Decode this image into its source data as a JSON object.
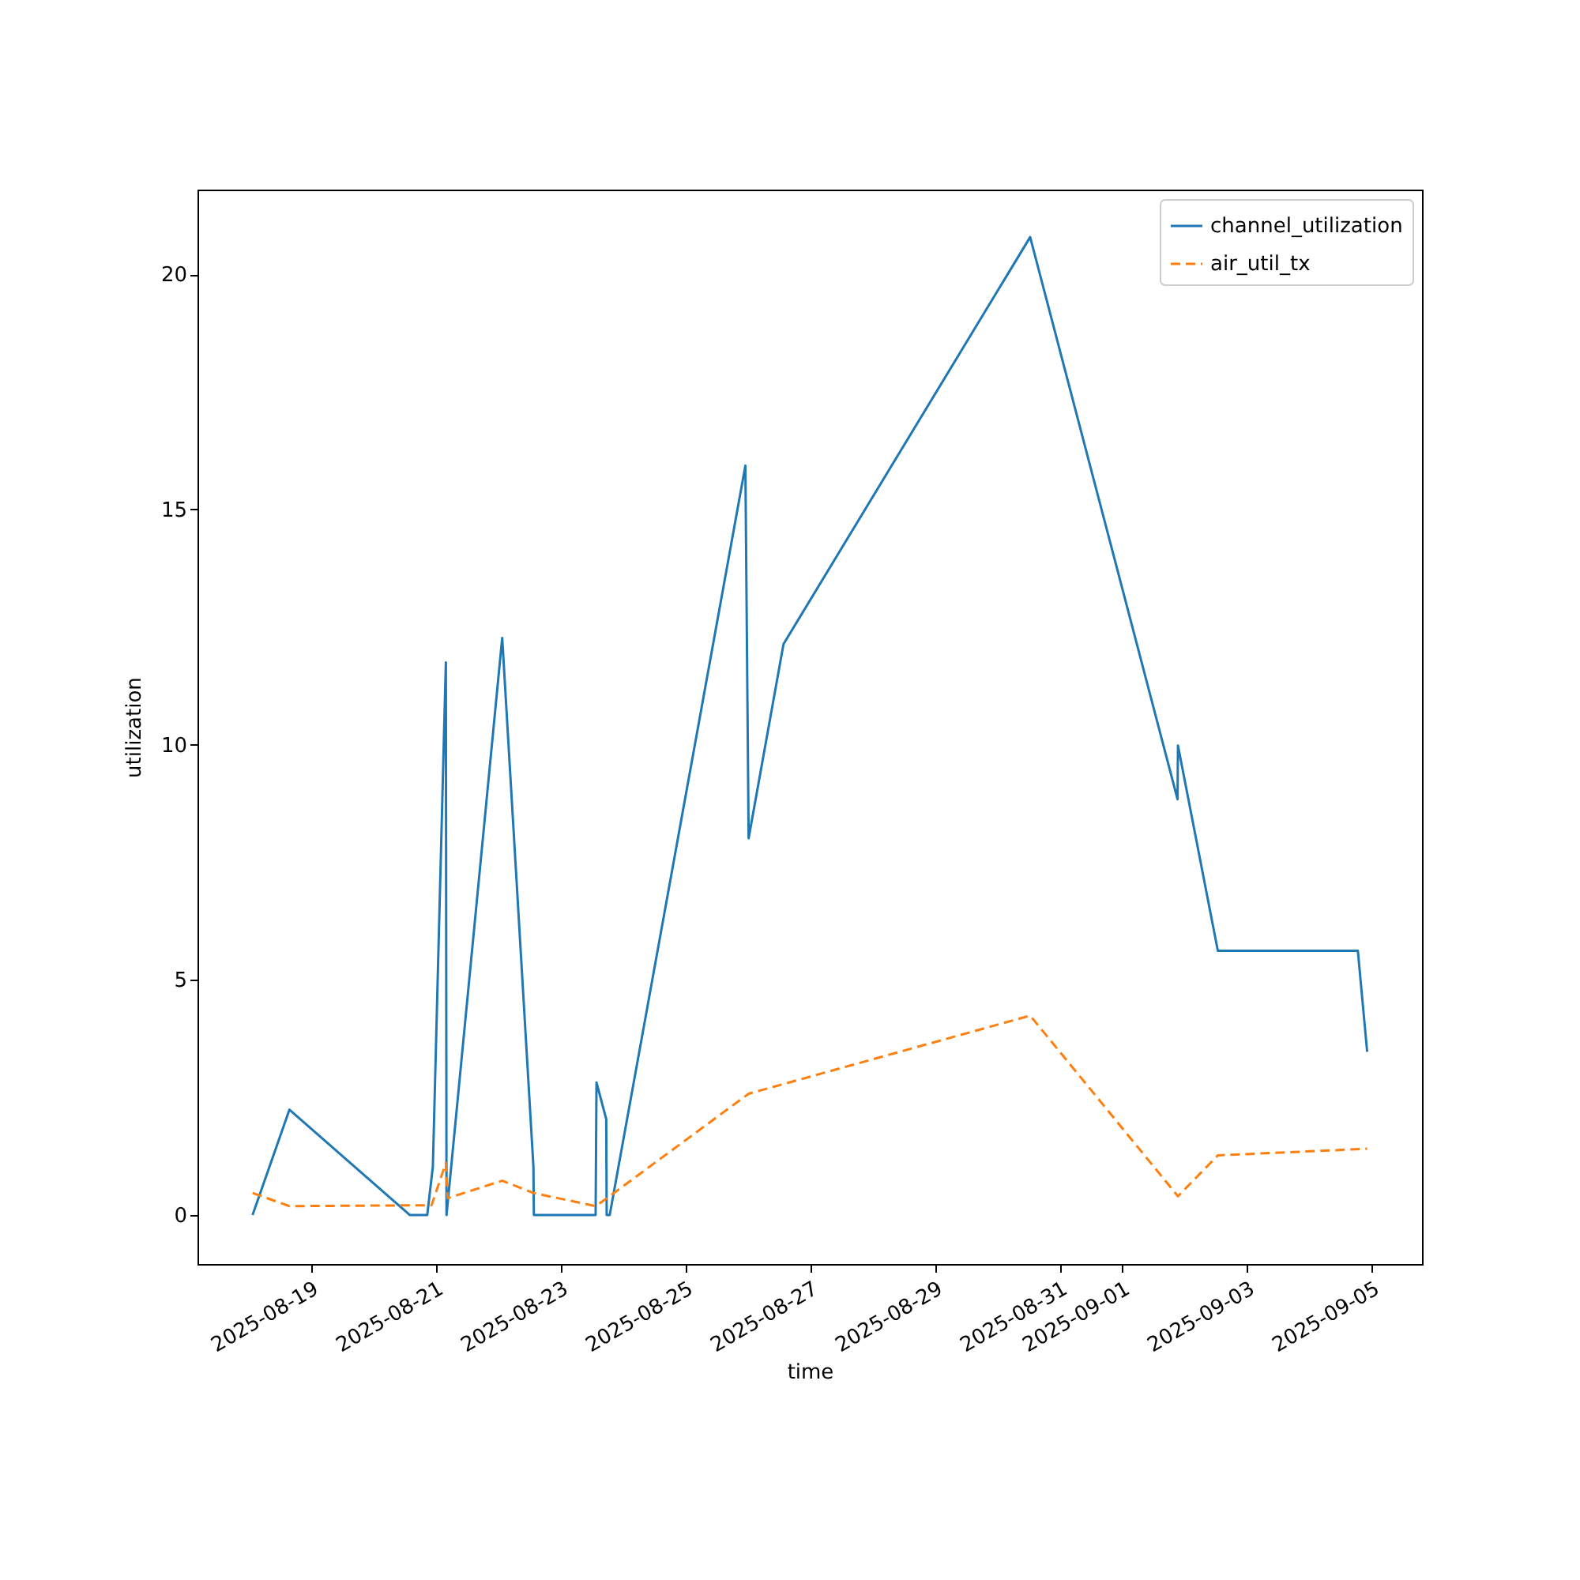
{
  "chart_data": {
    "type": "line",
    "xlabel": "time",
    "ylabel": "utilization",
    "legend": "top right",
    "grid": false,
    "xlim": [
      "2025-08-17T04:20",
      "2025-09-05T19:10"
    ],
    "ylim": [
      -1.04,
      21.8
    ],
    "xticks": [
      "2025-08-19",
      "2025-08-21",
      "2025-08-23",
      "2025-08-25",
      "2025-08-27",
      "2025-08-29",
      "2025-08-31",
      "2025-09-01",
      "2025-09-03",
      "2025-09-05"
    ],
    "yticks": [
      0,
      5,
      10,
      15,
      20
    ],
    "series": [
      {
        "name": "channel_utilization",
        "color": "#1f77b4",
        "line_style": "solid",
        "x": [
          "2025-08-18T01:30",
          "2025-08-18T15:40",
          "2025-08-20T14:00",
          "2025-08-20T20:40",
          "2025-08-20T22:50",
          "2025-08-21T03:50",
          "2025-08-21T04:05",
          "2025-08-22T01:30",
          "2025-08-22T13:30",
          "2025-08-22T13:40",
          "2025-08-23T13:25",
          "2025-08-23T13:45",
          "2025-08-23T17:30",
          "2025-08-23T17:40",
          "2025-08-23T18:50",
          "2025-08-25T23:00",
          "2025-08-26T00:15",
          "2025-08-26T13:40",
          "2025-08-30T12:30",
          "2025-09-01T21:10",
          "2025-09-01T21:20",
          "2025-09-02T12:40",
          "2025-09-04T18:30",
          "2025-09-04T22:05"
        ],
        "values": [
          0,
          2.24,
          0,
          0,
          1.03,
          11.75,
          0,
          12.27,
          1.03,
          0,
          0,
          2.82,
          2.04,
          0,
          0,
          15.93,
          8.01,
          12.14,
          20.79,
          8.84,
          9.98,
          5.62,
          5.62,
          3.47
        ]
      },
      {
        "name": "air_util_tx",
        "color": "#ff7f0e",
        "line_style": "dashed",
        "x": [
          "2025-08-18T01:30",
          "2025-08-18T15:40",
          "2025-08-20T22:20",
          "2025-08-21T03:50",
          "2025-08-21T04:30",
          "2025-08-22T01:30",
          "2025-08-22T13:30",
          "2025-08-23T13:25",
          "2025-08-23T18:15",
          "2025-08-26T00:15",
          "2025-08-30T12:30",
          "2025-09-01T21:20",
          "2025-09-02T12:40",
          "2025-09-04T22:05"
        ],
        "values": [
          0.47,
          0.19,
          0.21,
          1.11,
          0.36,
          0.73,
          0.47,
          0.19,
          0.38,
          2.58,
          4.24,
          0.4,
          1.27,
          1.41
        ]
      }
    ]
  }
}
